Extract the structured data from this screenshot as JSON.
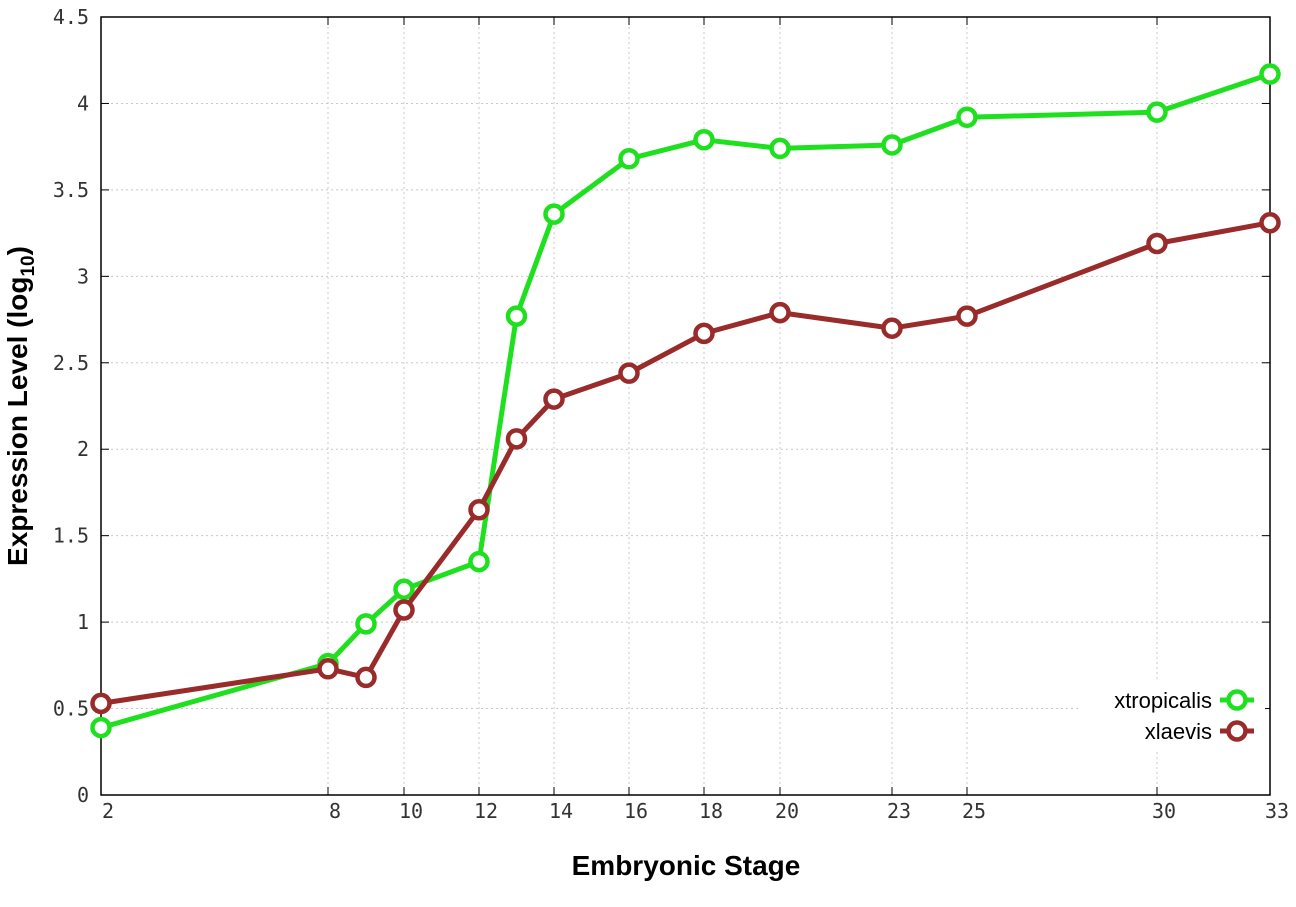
{
  "chart_data": {
    "type": "line",
    "x_ticks": [
      2,
      8,
      10,
      12,
      14,
      16,
      18,
      20,
      23,
      25,
      30,
      33
    ],
    "x_tick_labels": [
      "2",
      "8",
      "10",
      "12",
      "14",
      "16",
      "18",
      "20",
      "23",
      "25",
      "30",
      "33"
    ],
    "xlim": [
      2,
      33
    ],
    "ylim": [
      0,
      4.5
    ],
    "y_ticks": [
      0,
      0.5,
      1,
      1.5,
      2,
      2.5,
      3,
      3.5,
      4,
      4.5
    ],
    "y_tick_labels": [
      "0",
      "0.5",
      "1",
      "1.5",
      "2",
      "2.5",
      "3",
      "3.5",
      "4",
      "4.5"
    ],
    "xlabel": "Embryonic Stage",
    "ylabel": "Expression Level (log",
    "ylabel_sub": "10",
    "ylabel_end": ")",
    "grid": true,
    "legend_position": "bottom-right",
    "series": [
      {
        "name": "xtropicalis",
        "color": "#1ee01e",
        "x": [
          2,
          8,
          9,
          10,
          12,
          13,
          14,
          16,
          18,
          20,
          23,
          25,
          30,
          33
        ],
        "values": [
          0.39,
          0.76,
          0.99,
          1.19,
          1.35,
          2.77,
          3.36,
          3.68,
          3.79,
          3.74,
          3.76,
          3.92,
          3.95,
          4.17
        ]
      },
      {
        "name": "xlaevis",
        "color": "#992b2b",
        "x": [
          2,
          8,
          9,
          10,
          12,
          13,
          14,
          16,
          18,
          20,
          23,
          25,
          30,
          33
        ],
        "values": [
          0.53,
          0.73,
          0.68,
          1.07,
          1.65,
          2.06,
          2.29,
          2.44,
          2.67,
          2.79,
          2.7,
          2.77,
          3.19,
          3.31
        ]
      }
    ]
  }
}
